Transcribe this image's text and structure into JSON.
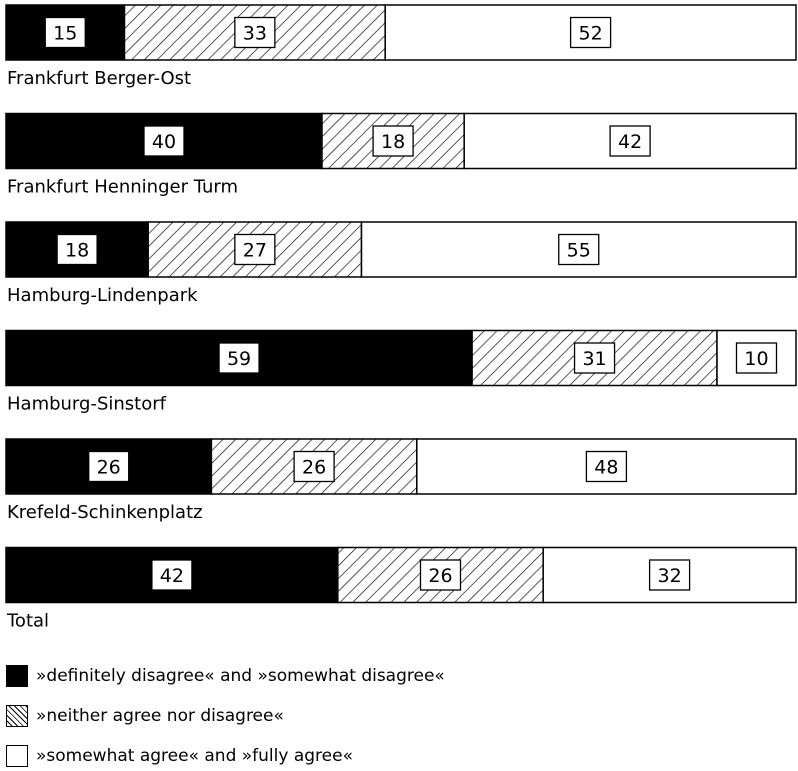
{
  "chart_data": {
    "type": "bar",
    "orientation": "horizontal",
    "stacked": true,
    "unit": "percent",
    "categories": [
      "Frankfurt Berger-Ost",
      "Frankfurt Henninger Turm",
      "Hamburg-Lindenpark",
      "Hamburg-Sinstorf",
      "Krefeld-Schinkenplatz",
      "Total"
    ],
    "series": [
      {
        "name": "»definitely disagree« and »somewhat disagree«",
        "fill": "solid-black",
        "color": "#000000",
        "values": [
          15,
          40,
          18,
          59,
          26,
          42
        ]
      },
      {
        "name": "»neither agree nor disagree«",
        "fill": "diagonal-hatch",
        "color": "#000000",
        "values": [
          33,
          18,
          27,
          31,
          26,
          26
        ]
      },
      {
        "name": "»somewhat agree« and »fully agree«",
        "fill": "white",
        "color": "#ffffff",
        "values": [
          52,
          42,
          55,
          10,
          48,
          32
        ]
      }
    ],
    "xlim": [
      0,
      100
    ],
    "grid": false,
    "legend_position": "bottom",
    "title": "",
    "xlabel": "",
    "ylabel": ""
  }
}
